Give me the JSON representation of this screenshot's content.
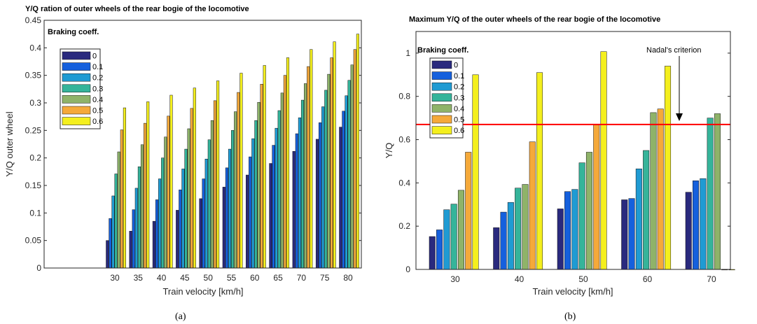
{
  "chart_data": [
    {
      "type": "bar",
      "panel_label": "(a)",
      "title": "Y/Q ration of outer wheels of the rear bogie of the locomotive",
      "xlabel": "Train velocity [km/h]",
      "ylabel": "Y/Q outer wheel",
      "ylim": [
        0,
        0.45
      ],
      "yticks": [
        "0",
        "0.05",
        "0.1",
        "0.15",
        "0.2",
        "0.25",
        "0.3",
        "0.35",
        "0.4",
        "0.45"
      ],
      "categories": [
        "30",
        "35",
        "40",
        "45",
        "50",
        "55",
        "60",
        "65",
        "70",
        "75",
        "80"
      ],
      "legend_title": "Braking coeff.",
      "legend_position": "top-left",
      "series": [
        {
          "name": "0",
          "values": [
            0.05,
            0.067,
            0.085,
            0.105,
            0.126,
            0.147,
            0.169,
            0.19,
            0.212,
            0.234,
            0.256
          ]
        },
        {
          "name": "0.1",
          "values": [
            0.09,
            0.106,
            0.124,
            0.142,
            0.162,
            0.182,
            0.202,
            0.223,
            0.244,
            0.264,
            0.285
          ]
        },
        {
          "name": "0.2",
          "values": [
            0.131,
            0.145,
            0.162,
            0.18,
            0.198,
            0.216,
            0.235,
            0.254,
            0.273,
            0.293,
            0.313
          ]
        },
        {
          "name": "0.3",
          "values": [
            0.171,
            0.184,
            0.2,
            0.216,
            0.233,
            0.25,
            0.268,
            0.286,
            0.305,
            0.323,
            0.341
          ]
        },
        {
          "name": "0.4",
          "values": [
            0.211,
            0.224,
            0.238,
            0.253,
            0.268,
            0.284,
            0.301,
            0.318,
            0.335,
            0.352,
            0.369
          ]
        },
        {
          "name": "0.5",
          "values": [
            0.251,
            0.263,
            0.276,
            0.29,
            0.304,
            0.319,
            0.334,
            0.35,
            0.366,
            0.382,
            0.397
          ]
        },
        {
          "name": "0.6",
          "values": [
            0.291,
            0.302,
            0.314,
            0.327,
            0.34,
            0.354,
            0.368,
            0.382,
            0.397,
            0.411,
            0.425
          ]
        }
      ]
    },
    {
      "type": "bar",
      "panel_label": "(b)",
      "title": "Maximum Y/Q of the outer wheels of the rear bogie of the locomotive",
      "xlabel": "Train velocity [km/h]",
      "ylabel": "Y/Q",
      "ylim": [
        0,
        1.1
      ],
      "yticks": [
        "0",
        "0.2",
        "0.4",
        "0.6",
        "0.8",
        "1"
      ],
      "categories": [
        "30",
        "40",
        "50",
        "60",
        "70"
      ],
      "legend_title": "Braking coeff.",
      "legend_position": "top-left",
      "reference_line": {
        "value": 0.67,
        "label": "Nadal's criterion",
        "color": "#ff0000"
      },
      "series": [
        {
          "name": "0",
          "values": [
            0.152,
            0.193,
            0.28,
            0.322,
            0.357
          ]
        },
        {
          "name": "0.1",
          "values": [
            0.183,
            0.265,
            0.36,
            0.328,
            0.41
          ]
        },
        {
          "name": "0.2",
          "values": [
            0.276,
            0.31,
            0.37,
            0.465,
            0.42
          ]
        },
        {
          "name": "0.3",
          "values": [
            0.302,
            0.376,
            0.493,
            0.55,
            0.7
          ]
        },
        {
          "name": "0.4",
          "values": [
            0.366,
            0.393,
            0.542,
            0.725,
            0.72
          ]
        },
        {
          "name": "0.5",
          "values": [
            0.542,
            0.59,
            0.668,
            0.742,
            0.0
          ]
        },
        {
          "name": "0.6",
          "values": [
            0.9,
            0.91,
            1.007,
            0.94,
            0.0
          ]
        }
      ]
    }
  ],
  "palette": [
    "#2a2a7e",
    "#1560dd",
    "#1f9bd3",
    "#35b49a",
    "#8fb369",
    "#f5a93a",
    "#f4ef1e"
  ],
  "page": {
    "caption_a": "(a)",
    "caption_b": "(b)"
  }
}
